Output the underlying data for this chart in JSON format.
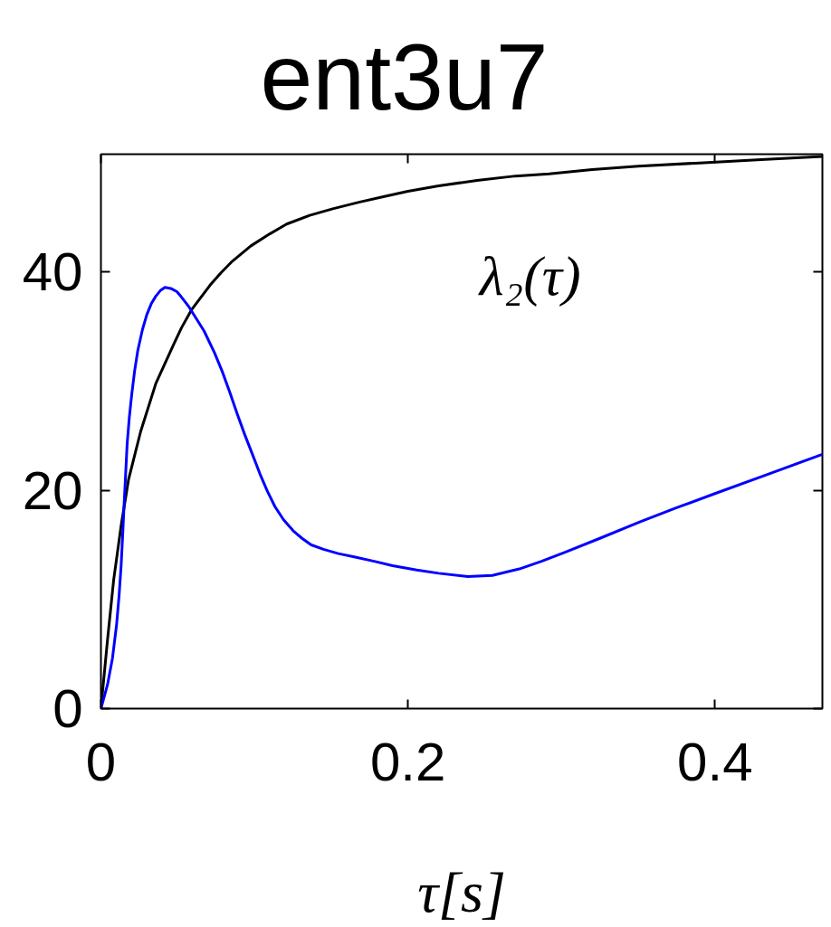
{
  "chart_data": {
    "type": "line",
    "title": "ent3u7",
    "xlabel": "τ[s]",
    "series": [
      {
        "color": "#000000",
        "x": [
          0,
          0.0043,
          0.0083,
          0.0132,
          0.018,
          0.0259,
          0.0358,
          0.0475,
          0.0525,
          0.0593,
          0.0711,
          0.078,
          0.0849,
          0.0977,
          0.11,
          0.121,
          0.136,
          0.151,
          0.168,
          0.184,
          0.2,
          0.22,
          0.245,
          0.27,
          0.292,
          0.32,
          0.35,
          0.39,
          0.43,
          0.47
        ],
        "values": [
          0,
          6.3,
          11.8,
          16.8,
          21.0,
          25.4,
          29.8,
          33.4,
          34.9,
          36.6,
          38.8,
          39.9,
          40.9,
          42.4,
          43.5,
          44.4,
          45.2,
          45.8,
          46.4,
          46.9,
          47.4,
          47.9,
          48.4,
          48.8,
          49.0,
          49.4,
          49.7,
          50.0,
          50.3,
          50.6
        ]
      },
      {
        "color": "#0000ff",
        "x": [
          0,
          0.0043,
          0.0075,
          0.0102,
          0.0118,
          0.0132,
          0.0142,
          0.0151,
          0.0161,
          0.0171,
          0.0185,
          0.02,
          0.022,
          0.024,
          0.027,
          0.0299,
          0.0328,
          0.0358,
          0.0387,
          0.0417,
          0.0455,
          0.0495,
          0.0525,
          0.0574,
          0.0623,
          0.0672,
          0.074,
          0.079,
          0.0839,
          0.0888,
          0.0937,
          0.0987,
          0.1036,
          0.1085,
          0.1134,
          0.119,
          0.1252,
          0.131,
          0.137,
          0.145,
          0.1547,
          0.165,
          0.178,
          0.19,
          0.2057,
          0.22,
          0.239,
          0.255,
          0.2726,
          0.287,
          0.302,
          0.325,
          0.351,
          0.375,
          0.4,
          0.435,
          0.47
        ],
        "values": [
          0,
          2.2,
          4.6,
          7.7,
          10.3,
          13.2,
          16.0,
          18.7,
          21.5,
          24.3,
          26.7,
          28.7,
          31.0,
          32.8,
          34.7,
          36.1,
          37.1,
          37.8,
          38.3,
          38.6,
          38.5,
          38.2,
          37.7,
          36.8,
          35.7,
          34.6,
          32.6,
          30.9,
          29.0,
          27.0,
          25.1,
          23.3,
          21.5,
          19.9,
          18.5,
          17.3,
          16.3,
          15.6,
          15.0,
          14.6,
          14.2,
          13.9,
          13.5,
          13.1,
          12.7,
          12.4,
          12.1,
          12.2,
          12.8,
          13.5,
          14.3,
          15.6,
          17.1,
          18.4,
          19.7,
          21.5,
          23.3
        ]
      }
    ],
    "xlim": [
      0,
      0.47
    ],
    "ylim": [
      0,
      50.8
    ],
    "xticks": [
      0,
      0.2,
      0.4
    ],
    "yticks": [
      0,
      20,
      40
    ],
    "annotations": [
      "λ₂(τ)"
    ]
  }
}
